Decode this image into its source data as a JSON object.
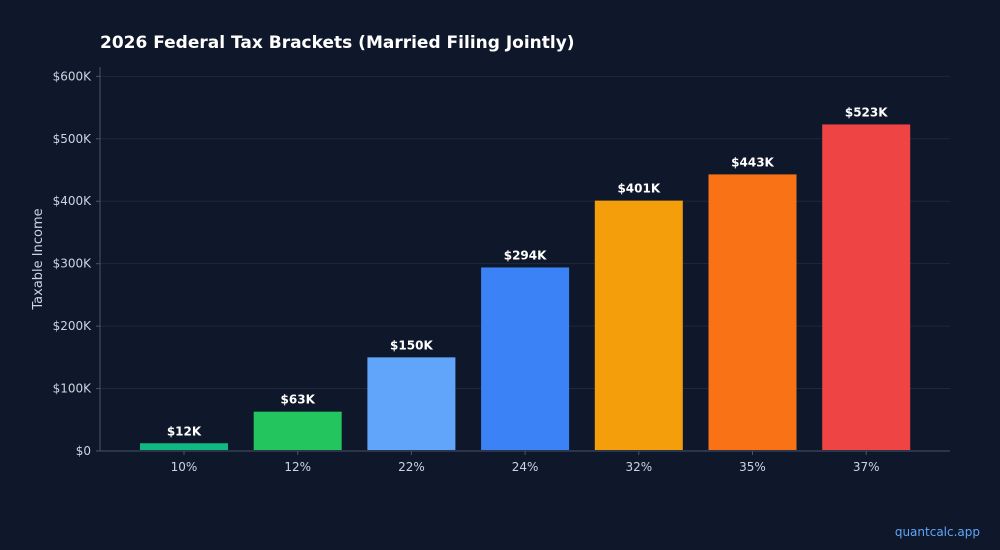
{
  "chart_data": {
    "type": "bar",
    "title": "2026 Federal Tax Brackets (Married Filing Jointly)",
    "xlabel": "",
    "ylabel": "Taxable Income",
    "categories": [
      "10%",
      "12%",
      "22%",
      "24%",
      "32%",
      "35%",
      "37%"
    ],
    "values": [
      12400,
      63000,
      150000,
      294000,
      401000,
      443000,
      523000
    ],
    "data_labels": [
      "$12K",
      "$63K",
      "$150K",
      "$294K",
      "$401K",
      "$443K",
      "$523K"
    ],
    "colors": [
      "#10b981",
      "#22c55e",
      "#60a5fa",
      "#3b82f6",
      "#f59e0b",
      "#f97316",
      "#ef4444"
    ],
    "ylim": [
      0,
      615000
    ],
    "yticks": [
      0,
      100000,
      200000,
      300000,
      400000,
      500000,
      600000
    ],
    "ytick_labels": [
      "$0",
      "$100K",
      "$200K",
      "$300K",
      "$400K",
      "$500K",
      "$600K"
    ],
    "grid": true,
    "legend": "none"
  },
  "watermark": "quantcalc.app",
  "theme": {
    "background": "#0f172a",
    "grid_color": "#1e293b",
    "axis_color": "#475569",
    "tick_text_color": "#cbd5e1",
    "label_text_color": "#ffffff"
  }
}
